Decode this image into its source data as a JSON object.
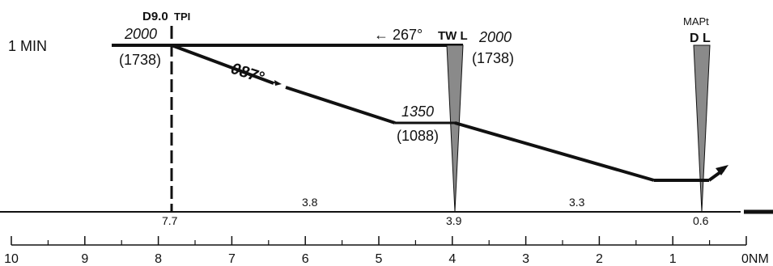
{
  "holding": {
    "label": "1 MIN",
    "altitude": "2000",
    "altitude_height": "(1738)"
  },
  "fixes": [
    {
      "id": "tpi",
      "name": "D9.0 TPI",
      "name_prefix": "D9.0",
      "name_suffix": "TPI",
      "distance_label": "7.7"
    },
    {
      "id": "tw",
      "name": "TW L",
      "distance_label": "3.9",
      "altitude": "2000",
      "altitude_height": "(1738)",
      "step_altitude": "1350",
      "step_height": "(1088)"
    },
    {
      "id": "mapt",
      "name": "D L",
      "top_label": "MAPt",
      "distance_label": "0.6"
    }
  ],
  "courses": {
    "outbound": "← 267°",
    "inbound": "087°"
  },
  "segments": [
    {
      "id": "tpi-to-tw",
      "distance": "3.8"
    },
    {
      "id": "tw-to-mapt",
      "distance": "3.3"
    }
  ],
  "scale": {
    "labels": [
      "10",
      "9",
      "8",
      "7",
      "6",
      "5",
      "4",
      "3",
      "2",
      "1",
      "0NM"
    ]
  },
  "colors": {
    "line": "#111111",
    "fan": "#8a8a8a"
  }
}
